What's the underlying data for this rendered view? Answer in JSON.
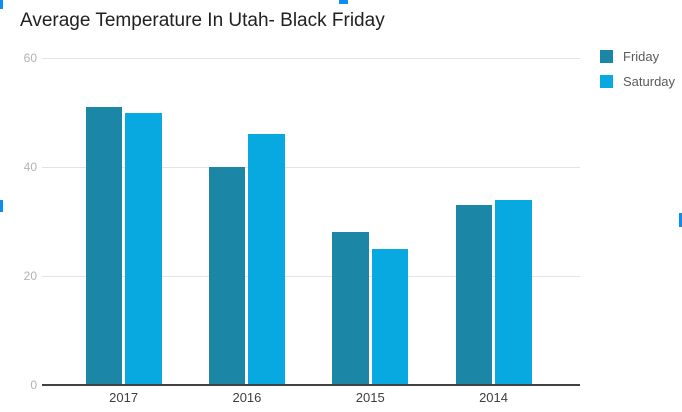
{
  "chart_data": {
    "type": "bar",
    "title": "Average Temperature In Utah- Black Friday",
    "categories": [
      "2017",
      "2016",
      "2015",
      "2014"
    ],
    "series": [
      {
        "name": "Friday",
        "color": "#1c86a7",
        "values": [
          51,
          40,
          28,
          33
        ]
      },
      {
        "name": "Saturday",
        "color": "#08a8e0",
        "values": [
          50,
          46,
          25,
          34
        ]
      }
    ],
    "xlabel": "",
    "ylabel": "",
    "ylim": [
      0,
      60
    ],
    "yticks": [
      0,
      20,
      40,
      60
    ],
    "grid": true,
    "legend_position": "top-right"
  },
  "colors": {
    "background": "#ffffff",
    "grid_line": "#e3e3e3",
    "axis_line": "#424242",
    "y_tick_label": "#b3b3b3",
    "x_tick_label": "#3c4043",
    "title_text": "#212121",
    "legend_text": "#5a5a5a",
    "selection_handle": "#0d8df2"
  }
}
